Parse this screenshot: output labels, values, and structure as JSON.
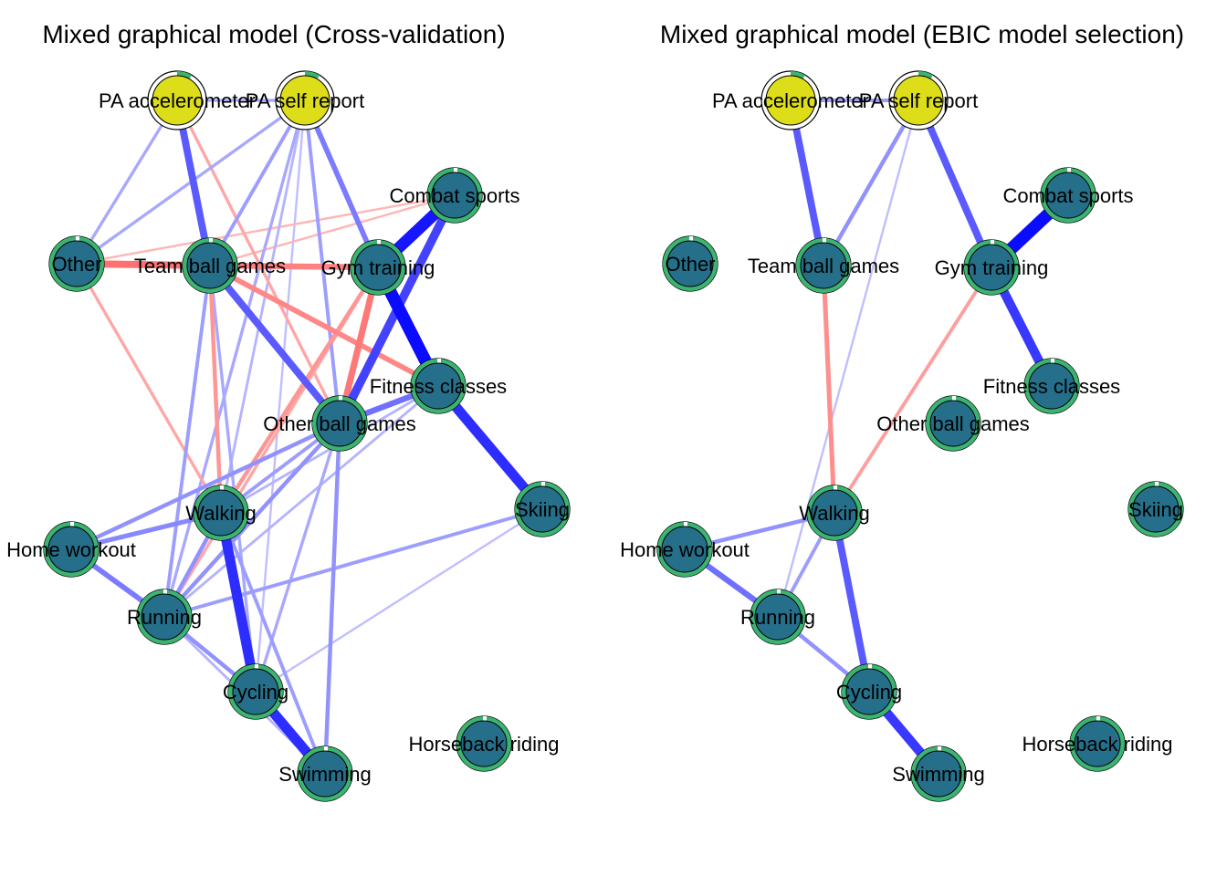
{
  "colors": {
    "positive_edge": "#0000ff",
    "negative_edge": "#ff0000",
    "continuous_node": "#dddd1a",
    "categorical_node": "#256f8a",
    "pie_fill": "#3cb371",
    "pie_background": "#ffffff",
    "node_border": "#000000",
    "background": "#ffffff"
  },
  "nodes": {
    "pa_acc": {
      "label": "PA accelerometer",
      "type": "continuous"
    },
    "pa_self": {
      "label": "PA self report",
      "type": "continuous"
    },
    "combat": {
      "label": "Combat sports",
      "type": "categorical"
    },
    "other": {
      "label": "Other",
      "type": "categorical"
    },
    "team": {
      "label": "Team ball games",
      "type": "categorical"
    },
    "gym": {
      "label": "Gym training",
      "type": "categorical"
    },
    "fitness": {
      "label": "Fitness classes",
      "type": "categorical"
    },
    "otherball": {
      "label": "Other ball games",
      "type": "categorical"
    },
    "walking": {
      "label": "Walking",
      "type": "categorical"
    },
    "skiing": {
      "label": "Skiing",
      "type": "categorical"
    },
    "home": {
      "label": "Home workout",
      "type": "categorical"
    },
    "running": {
      "label": "Running",
      "type": "categorical"
    },
    "cycling": {
      "label": "Cycling",
      "type": "categorical"
    },
    "horse": {
      "label": "Horseback riding",
      "type": "categorical"
    },
    "swimming": {
      "label": "Swimming",
      "type": "categorical"
    }
  },
  "panels": [
    {
      "id": "cv",
      "title": "Mixed graphical model (Cross-validation)",
      "edges": [
        {
          "from": "pa_acc",
          "to": "pa_self",
          "weight": 0.25,
          "sign": "positive"
        },
        {
          "from": "pa_acc",
          "to": "other",
          "weight": 0.25,
          "sign": "positive"
        },
        {
          "from": "pa_acc",
          "to": "team",
          "weight": 0.6,
          "sign": "positive"
        },
        {
          "from": "pa_acc",
          "to": "otherball",
          "weight": 0.25,
          "sign": "negative"
        },
        {
          "from": "pa_self",
          "to": "other",
          "weight": 0.25,
          "sign": "positive"
        },
        {
          "from": "pa_self",
          "to": "team",
          "weight": 0.3,
          "sign": "positive"
        },
        {
          "from": "pa_self",
          "to": "gym",
          "weight": 0.45,
          "sign": "positive"
        },
        {
          "from": "pa_self",
          "to": "otherball",
          "weight": 0.3,
          "sign": "positive"
        },
        {
          "from": "pa_self",
          "to": "walking",
          "weight": 0.2,
          "sign": "positive"
        },
        {
          "from": "pa_self",
          "to": "running",
          "weight": 0.25,
          "sign": "positive"
        },
        {
          "from": "pa_self",
          "to": "cycling",
          "weight": 0.15,
          "sign": "positive"
        },
        {
          "from": "other",
          "to": "team",
          "weight": 0.6,
          "sign": "negative"
        },
        {
          "from": "other",
          "to": "gym",
          "weight": 0.25,
          "sign": "negative"
        },
        {
          "from": "other",
          "to": "combat",
          "weight": 0.15,
          "sign": "negative"
        },
        {
          "from": "other",
          "to": "walking",
          "weight": 0.25,
          "sign": "negative"
        },
        {
          "from": "team",
          "to": "gym",
          "weight": 0.5,
          "sign": "negative"
        },
        {
          "from": "team",
          "to": "fitness",
          "weight": 0.45,
          "sign": "negative"
        },
        {
          "from": "team",
          "to": "otherball",
          "weight": 0.6,
          "sign": "positive"
        },
        {
          "from": "team",
          "to": "walking",
          "weight": 0.35,
          "sign": "negative"
        },
        {
          "from": "team",
          "to": "running",
          "weight": 0.3,
          "sign": "positive"
        },
        {
          "from": "team",
          "to": "combat",
          "weight": 0.15,
          "sign": "negative"
        },
        {
          "from": "gym",
          "to": "combat",
          "weight": 0.9,
          "sign": "positive"
        },
        {
          "from": "gym",
          "to": "fitness",
          "weight": 0.95,
          "sign": "positive"
        },
        {
          "from": "gym",
          "to": "otherball",
          "weight": 0.55,
          "sign": "negative"
        },
        {
          "from": "gym",
          "to": "walking",
          "weight": 0.35,
          "sign": "negative"
        },
        {
          "from": "gym",
          "to": "running",
          "weight": 0.25,
          "sign": "negative"
        },
        {
          "from": "combat",
          "to": "otherball",
          "weight": 0.7,
          "sign": "positive"
        },
        {
          "from": "fitness",
          "to": "otherball",
          "weight": 0.5,
          "sign": "positive"
        },
        {
          "from": "fitness",
          "to": "skiing",
          "weight": 0.8,
          "sign": "positive"
        },
        {
          "from": "fitness",
          "to": "walking",
          "weight": 0.2,
          "sign": "positive"
        },
        {
          "from": "fitness",
          "to": "running",
          "weight": 0.2,
          "sign": "positive"
        },
        {
          "from": "otherball",
          "to": "walking",
          "weight": 0.3,
          "sign": "positive"
        },
        {
          "from": "otherball",
          "to": "home",
          "weight": 0.35,
          "sign": "positive"
        },
        {
          "from": "otherball",
          "to": "running",
          "weight": 0.35,
          "sign": "positive"
        },
        {
          "from": "otherball",
          "to": "cycling",
          "weight": 0.25,
          "sign": "positive"
        },
        {
          "from": "otherball",
          "to": "swimming",
          "weight": 0.35,
          "sign": "positive"
        },
        {
          "from": "walking",
          "to": "home",
          "weight": 0.4,
          "sign": "positive"
        },
        {
          "from": "walking",
          "to": "running",
          "weight": 0.35,
          "sign": "positive"
        },
        {
          "from": "walking",
          "to": "cycling",
          "weight": 0.8,
          "sign": "positive"
        },
        {
          "from": "walking",
          "to": "swimming",
          "weight": 0.3,
          "sign": "positive"
        },
        {
          "from": "home",
          "to": "running",
          "weight": 0.45,
          "sign": "positive"
        },
        {
          "from": "running",
          "to": "cycling",
          "weight": 0.35,
          "sign": "positive"
        },
        {
          "from": "running",
          "to": "skiing",
          "weight": 0.3,
          "sign": "positive"
        },
        {
          "from": "running",
          "to": "swimming",
          "weight": 0.2,
          "sign": "positive"
        },
        {
          "from": "cycling",
          "to": "swimming",
          "weight": 0.8,
          "sign": "positive"
        },
        {
          "from": "cycling",
          "to": "skiing",
          "weight": 0.15,
          "sign": "positive"
        },
        {
          "from": "cycling",
          "to": "team",
          "weight": 0.25,
          "sign": "positive"
        }
      ]
    },
    {
      "id": "ebic",
      "title": "Mixed graphical model (EBIC model selection)",
      "edges": [
        {
          "from": "pa_acc",
          "to": "pa_self",
          "weight": 0.3,
          "sign": "positive"
        },
        {
          "from": "pa_acc",
          "to": "team",
          "weight": 0.6,
          "sign": "positive"
        },
        {
          "from": "pa_self",
          "to": "team",
          "weight": 0.35,
          "sign": "positive"
        },
        {
          "from": "pa_self",
          "to": "gym",
          "weight": 0.6,
          "sign": "positive"
        },
        {
          "from": "pa_self",
          "to": "running",
          "weight": 0.15,
          "sign": "positive"
        },
        {
          "from": "gym",
          "to": "combat",
          "weight": 0.95,
          "sign": "positive"
        },
        {
          "from": "gym",
          "to": "fitness",
          "weight": 0.75,
          "sign": "positive"
        },
        {
          "from": "gym",
          "to": "walking",
          "weight": 0.3,
          "sign": "negative"
        },
        {
          "from": "team",
          "to": "walking",
          "weight": 0.4,
          "sign": "negative"
        },
        {
          "from": "walking",
          "to": "home",
          "weight": 0.35,
          "sign": "positive"
        },
        {
          "from": "walking",
          "to": "running",
          "weight": 0.3,
          "sign": "positive"
        },
        {
          "from": "walking",
          "to": "cycling",
          "weight": 0.6,
          "sign": "positive"
        },
        {
          "from": "home",
          "to": "running",
          "weight": 0.5,
          "sign": "positive"
        },
        {
          "from": "running",
          "to": "cycling",
          "weight": 0.35,
          "sign": "positive"
        },
        {
          "from": "cycling",
          "to": "swimming",
          "weight": 0.75,
          "sign": "positive"
        }
      ]
    }
  ]
}
